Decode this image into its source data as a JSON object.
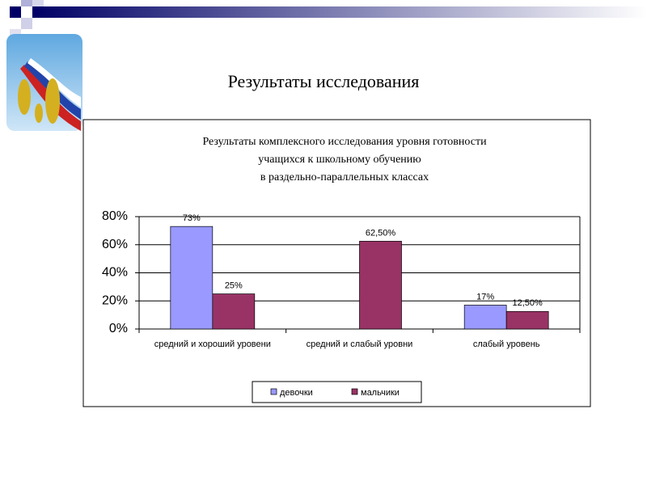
{
  "chart_data": {
    "type": "bar",
    "slide_title": "Результаты исследования",
    "title": [
      "Результаты  комплексного исследования уровня    готовности",
      "учащихся к школьному обучению",
      "в  раздельно-параллельных классах"
    ],
    "categories": [
      "средний и хороший уровени",
      "средний и слабый уровни",
      "слабый уровень"
    ],
    "series": [
      {
        "name": "девочки",
        "color": "#9999ff",
        "values": [
          73,
          null,
          17
        ],
        "value_labels": [
          "73%",
          null,
          "17%"
        ]
      },
      {
        "name": "мальчики",
        "color": "#993366",
        "values": [
          25,
          62.5,
          12.5
        ],
        "value_labels": [
          "25%",
          "62,50%",
          "12,50%"
        ]
      }
    ],
    "ylim": [
      0,
      80
    ],
    "yticks": [
      {
        "value": 0,
        "label": "0%"
      },
      {
        "value": 20,
        "label": "20%"
      },
      {
        "value": 40,
        "label": "40%"
      },
      {
        "value": 60,
        "label": "60%"
      },
      {
        "value": 80,
        "label": "80%"
      }
    ],
    "grid": true,
    "legend": "bottom"
  }
}
